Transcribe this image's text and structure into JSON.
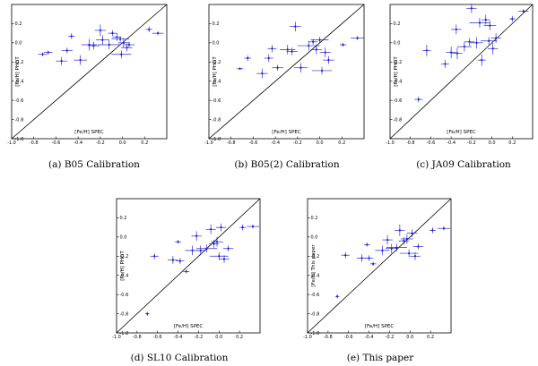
{
  "chart_data": [
    {
      "type": "scatter",
      "caption": "(a) B05 Calibration",
      "xlabel": "[Fe/H] SPEC",
      "ylabel": "[Fe/H] PHOT",
      "xlim": [
        -1.0,
        0.4
      ],
      "ylim": [
        -1.0,
        0.4
      ],
      "xticks": [
        "-1.0",
        "-0.8",
        "-0.6",
        "-0.4",
        "-0.2",
        "0.0",
        "0.2"
      ],
      "yticks": [
        "-1.0",
        "-0.8",
        "-0.6",
        "-0.4",
        "-0.2",
        "0.0",
        "0.2"
      ],
      "points": [
        {
          "x": -0.72,
          "y": -0.12,
          "xe": 0.04,
          "ye": 0.02
        },
        {
          "x": -0.67,
          "y": -0.1,
          "xe": 0.04,
          "ye": 0.02
        },
        {
          "x": -0.55,
          "y": -0.19,
          "xe": 0.05,
          "ye": 0.04
        },
        {
          "x": -0.5,
          "y": -0.08,
          "xe": 0.05,
          "ye": 0.03
        },
        {
          "x": -0.46,
          "y": 0.07,
          "xe": 0.03,
          "ye": 0.03
        },
        {
          "x": -0.38,
          "y": -0.18,
          "xe": 0.06,
          "ye": 0.05
        },
        {
          "x": -0.3,
          "y": -0.02,
          "xe": 0.07,
          "ye": 0.06
        },
        {
          "x": -0.26,
          "y": -0.03,
          "xe": 0.05,
          "ye": 0.04
        },
        {
          "x": -0.2,
          "y": 0.13,
          "xe": 0.05,
          "ye": 0.06
        },
        {
          "x": -0.18,
          "y": 0.03,
          "xe": 0.06,
          "ye": 0.05
        },
        {
          "x": -0.12,
          "y": -0.02,
          "xe": 0.1,
          "ye": 0.05
        },
        {
          "x": -0.09,
          "y": 0.1,
          "xe": 0.04,
          "ye": 0.03
        },
        {
          "x": -0.05,
          "y": 0.06,
          "xe": 0.04,
          "ye": 0.04
        },
        {
          "x": -0.02,
          "y": 0.04,
          "xe": 0.08,
          "ye": 0.03
        },
        {
          "x": -0.01,
          "y": -0.12,
          "xe": 0.09,
          "ye": 0.04
        },
        {
          "x": 0.01,
          "y": 0.0,
          "xe": 0.05,
          "ye": 0.05
        },
        {
          "x": 0.04,
          "y": -0.05,
          "xe": 0.05,
          "ye": 0.04
        },
        {
          "x": 0.06,
          "y": -0.02,
          "xe": 0.05,
          "ye": 0.03
        },
        {
          "x": 0.24,
          "y": 0.14,
          "xe": 0.03,
          "ye": 0.03
        },
        {
          "x": 0.32,
          "y": 0.1,
          "xe": 0.05,
          "ye": 0.02
        }
      ]
    },
    {
      "type": "scatter",
      "caption": "(b) B05(2) Calibration",
      "xlabel": "[Fe/H] SPEC",
      "ylabel": "[Fe/H] PHOT",
      "xlim": [
        -1.0,
        0.4
      ],
      "ylim": [
        -1.0,
        0.4
      ],
      "xticks": [
        "-1.0",
        "-0.8",
        "-0.6",
        "-0.4",
        "-0.2",
        "0.0",
        "0.2"
      ],
      "yticks": [
        "-1.0",
        "-0.8",
        "-0.6",
        "-0.4",
        "-0.2",
        "0.0",
        "0.2"
      ],
      "points": [
        {
          "x": -0.72,
          "y": -0.27,
          "xe": 0.03,
          "ye": 0.01
        },
        {
          "x": -0.65,
          "y": -0.16,
          "xe": 0.03,
          "ye": 0.03
        },
        {
          "x": -0.52,
          "y": -0.32,
          "xe": 0.05,
          "ye": 0.05
        },
        {
          "x": -0.46,
          "y": -0.16,
          "xe": 0.04,
          "ye": 0.04
        },
        {
          "x": -0.43,
          "y": -0.06,
          "xe": 0.04,
          "ye": 0.04
        },
        {
          "x": -0.38,
          "y": -0.26,
          "xe": 0.05,
          "ye": 0.03
        },
        {
          "x": -0.29,
          "y": -0.07,
          "xe": 0.07,
          "ye": 0.05
        },
        {
          "x": -0.25,
          "y": -0.09,
          "xe": 0.05,
          "ye": 0.04
        },
        {
          "x": -0.22,
          "y": 0.17,
          "xe": 0.05,
          "ye": 0.05
        },
        {
          "x": -0.17,
          "y": -0.26,
          "xe": 0.06,
          "ye": 0.05
        },
        {
          "x": -0.1,
          "y": -0.03,
          "xe": 0.1,
          "ye": 0.05
        },
        {
          "x": -0.06,
          "y": 0.01,
          "xe": 0.04,
          "ye": 0.03
        },
        {
          "x": -0.03,
          "y": -0.07,
          "xe": 0.05,
          "ye": 0.05
        },
        {
          "x": 0.0,
          "y": 0.03,
          "xe": 0.08,
          "ye": 0.03
        },
        {
          "x": 0.02,
          "y": -0.29,
          "xe": 0.09,
          "ye": 0.04
        },
        {
          "x": 0.05,
          "y": -0.1,
          "xe": 0.05,
          "ye": 0.05
        },
        {
          "x": 0.08,
          "y": -0.18,
          "xe": 0.05,
          "ye": 0.04
        },
        {
          "x": 0.21,
          "y": -0.02,
          "xe": 0.03,
          "ye": 0.02
        },
        {
          "x": 0.34,
          "y": 0.05,
          "xe": 0.06,
          "ye": 0.02
        }
      ]
    },
    {
      "type": "scatter",
      "caption": "(c) JA09 Calibration",
      "xlabel": "[Fe/H] SPEC",
      "ylabel": "[Fe/H] PHOT",
      "xlim": [
        -1.0,
        0.4
      ],
      "ylim": [
        -1.0,
        0.4
      ],
      "xticks": [
        "-1.0",
        "-0.8",
        "-0.6",
        "-0.4",
        "-0.2",
        "0.0",
        "0.2"
      ],
      "yticks": [
        "-0.8",
        "-0.6",
        "-0.4",
        "-0.2",
        "0.0",
        "0.2"
      ],
      "points": [
        {
          "x": -0.72,
          "y": -0.59,
          "xe": 0.04,
          "ye": 0.03
        },
        {
          "x": -0.64,
          "y": -0.08,
          "xe": 0.04,
          "ye": 0.06
        },
        {
          "x": -0.46,
          "y": -0.22,
          "xe": 0.04,
          "ye": 0.04
        },
        {
          "x": -0.4,
          "y": -0.1,
          "xe": 0.05,
          "ye": 0.06
        },
        {
          "x": -0.35,
          "y": 0.14,
          "xe": 0.05,
          "ye": 0.05
        },
        {
          "x": -0.34,
          "y": -0.11,
          "xe": 0.05,
          "ye": 0.06
        },
        {
          "x": -0.27,
          "y": -0.04,
          "xe": 0.07,
          "ye": 0.05
        },
        {
          "x": -0.22,
          "y": 0.01,
          "xe": 0.05,
          "ye": 0.04
        },
        {
          "x": -0.2,
          "y": 0.36,
          "xe": 0.05,
          "ye": 0.05
        },
        {
          "x": -0.15,
          "y": 0.0,
          "xe": 0.06,
          "ye": 0.06
        },
        {
          "x": -0.12,
          "y": 0.21,
          "xe": 0.1,
          "ye": 0.05
        },
        {
          "x": -0.1,
          "y": -0.18,
          "xe": 0.04,
          "ye": 0.06
        },
        {
          "x": -0.06,
          "y": 0.24,
          "xe": 0.04,
          "ye": 0.05
        },
        {
          "x": -0.03,
          "y": 0.02,
          "xe": 0.08,
          "ye": 0.04
        },
        {
          "x": -0.02,
          "y": 0.18,
          "xe": 0.06,
          "ye": 0.05
        },
        {
          "x": 0.01,
          "y": -0.06,
          "xe": 0.05,
          "ye": 0.06
        },
        {
          "x": 0.04,
          "y": 0.05,
          "xe": 0.05,
          "ye": 0.05
        },
        {
          "x": 0.2,
          "y": 0.25,
          "xe": 0.03,
          "ye": 0.03
        },
        {
          "x": 0.31,
          "y": 0.33,
          "xe": 0.05,
          "ye": 0.02
        }
      ]
    },
    {
      "type": "scatter",
      "caption": "(d) SL10 Calibration",
      "xlabel": "[Fe/H] SPEC",
      "ylabel": "[Fe/H] PHOT",
      "xlim": [
        -1.0,
        0.4
      ],
      "ylim": [
        -1.0,
        0.4
      ],
      "xticks": [
        "-1.0",
        "-0.8",
        "-0.6",
        "-0.4",
        "-0.2",
        "0.0",
        "0.2"
      ],
      "yticks": [
        "-1.0",
        "-0.8",
        "-0.6",
        "-0.4",
        "-0.2",
        "0.0",
        "0.2"
      ],
      "points": [
        {
          "x": -0.7,
          "y": -0.8,
          "xe": 0.02,
          "ye": 0.02
        },
        {
          "x": -0.63,
          "y": -0.2,
          "xe": 0.04,
          "ye": 0.03
        },
        {
          "x": -0.45,
          "y": -0.24,
          "xe": 0.05,
          "ye": 0.04
        },
        {
          "x": -0.4,
          "y": -0.05,
          "xe": 0.03,
          "ye": 0.02
        },
        {
          "x": -0.38,
          "y": -0.25,
          "xe": 0.04,
          "ye": 0.03
        },
        {
          "x": -0.32,
          "y": -0.36,
          "xe": 0.03,
          "ye": 0.02
        },
        {
          "x": -0.26,
          "y": -0.14,
          "xe": 0.07,
          "ye": 0.05
        },
        {
          "x": -0.22,
          "y": 0.01,
          "xe": 0.05,
          "ye": 0.05
        },
        {
          "x": -0.18,
          "y": -0.14,
          "xe": 0.06,
          "ye": 0.05
        },
        {
          "x": -0.12,
          "y": -0.12,
          "xe": 0.1,
          "ye": 0.04
        },
        {
          "x": -0.08,
          "y": 0.08,
          "xe": 0.05,
          "ye": 0.05
        },
        {
          "x": -0.05,
          "y": -0.07,
          "xe": 0.05,
          "ye": 0.04
        },
        {
          "x": -0.02,
          "y": -0.05,
          "xe": 0.06,
          "ye": 0.05
        },
        {
          "x": 0.0,
          "y": -0.2,
          "xe": 0.09,
          "ye": 0.04
        },
        {
          "x": 0.02,
          "y": 0.1,
          "xe": 0.05,
          "ye": 0.04
        },
        {
          "x": 0.05,
          "y": -0.23,
          "xe": 0.05,
          "ye": 0.04
        },
        {
          "x": 0.09,
          "y": -0.12,
          "xe": 0.05,
          "ye": 0.03
        },
        {
          "x": 0.23,
          "y": 0.1,
          "xe": 0.03,
          "ye": 0.03
        },
        {
          "x": 0.33,
          "y": 0.11,
          "xe": 0.06,
          "ye": 0.02
        }
      ]
    },
    {
      "type": "scatter",
      "caption": "(e) This paper",
      "xlabel": "[Fe/H] SPEC",
      "ylabel": "[Fe/H] This paper",
      "xlim": [
        -1.0,
        0.4
      ],
      "ylim": [
        -1.0,
        0.4
      ],
      "xticks": [
        "-1.0",
        "-0.8",
        "-0.6",
        "-0.4",
        "-0.2",
        "0.0",
        "0.2"
      ],
      "yticks": [
        "-1.0",
        "-0.8",
        "-0.6",
        "-0.4",
        "-0.2",
        "0.0",
        "0.2"
      ],
      "points": [
        {
          "x": -0.71,
          "y": -0.62,
          "xe": 0.02,
          "ye": 0.02
        },
        {
          "x": -0.63,
          "y": -0.19,
          "xe": 0.04,
          "ye": 0.03
        },
        {
          "x": -0.47,
          "y": -0.22,
          "xe": 0.05,
          "ye": 0.04
        },
        {
          "x": -0.42,
          "y": -0.08,
          "xe": 0.03,
          "ye": 0.02
        },
        {
          "x": -0.4,
          "y": -0.22,
          "xe": 0.04,
          "ye": 0.03
        },
        {
          "x": -0.36,
          "y": -0.28,
          "xe": 0.03,
          "ye": 0.02
        },
        {
          "x": -0.27,
          "y": -0.14,
          "xe": 0.07,
          "ye": 0.05
        },
        {
          "x": -0.22,
          "y": -0.03,
          "xe": 0.05,
          "ye": 0.05
        },
        {
          "x": -0.18,
          "y": -0.12,
          "xe": 0.06,
          "ye": 0.05
        },
        {
          "x": -0.13,
          "y": -0.11,
          "xe": 0.1,
          "ye": 0.04
        },
        {
          "x": -0.1,
          "y": 0.07,
          "xe": 0.05,
          "ye": 0.06
        },
        {
          "x": -0.06,
          "y": -0.04,
          "xe": 0.05,
          "ye": 0.04
        },
        {
          "x": -0.03,
          "y": -0.02,
          "xe": 0.06,
          "ye": 0.05
        },
        {
          "x": -0.01,
          "y": -0.17,
          "xe": 0.09,
          "ye": 0.04
        },
        {
          "x": 0.02,
          "y": 0.04,
          "xe": 0.05,
          "ye": 0.04
        },
        {
          "x": 0.05,
          "y": -0.2,
          "xe": 0.05,
          "ye": 0.04
        },
        {
          "x": 0.08,
          "y": -0.1,
          "xe": 0.05,
          "ye": 0.03
        },
        {
          "x": 0.22,
          "y": 0.07,
          "xe": 0.03,
          "ye": 0.03
        },
        {
          "x": 0.33,
          "y": 0.09,
          "xe": 0.06,
          "ye": 0.02
        }
      ]
    }
  ]
}
